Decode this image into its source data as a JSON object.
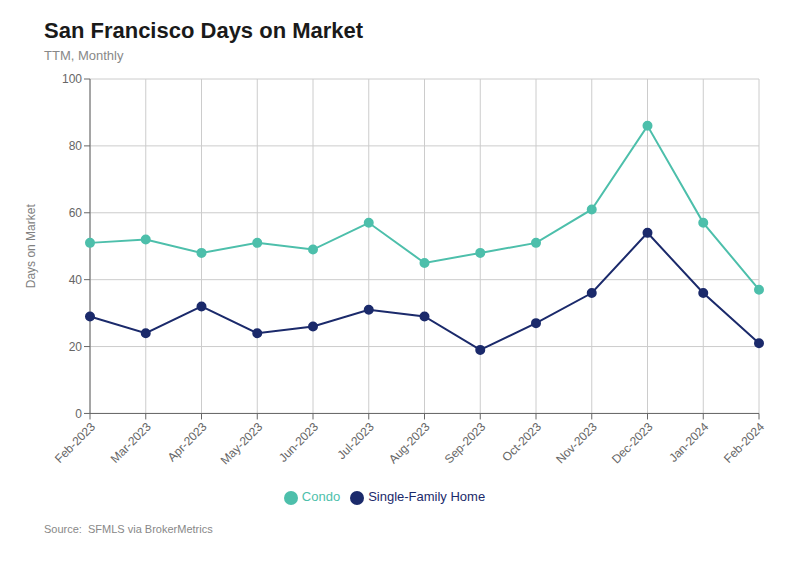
{
  "chart_data": {
    "type": "line",
    "title": "San Francisco Days on Market",
    "subtitle": "TTM, Monthly",
    "y_label": "Days on Market",
    "annotations": [
      "Source:  SFMLS via BrokerMetrics"
    ],
    "categories": [
      "Feb-2023",
      "Mar-2023",
      "Apr-2023",
      "May-2023",
      "Jun-2023",
      "Jul-2023",
      "Aug-2023",
      "Sep-2023",
      "Oct-2023",
      "Nov-2023",
      "Dec-2023",
      "Jan-2024",
      "Feb-2024"
    ],
    "series": [
      {
        "name": "Single-Family Home",
        "color": "#1b2a6b",
        "marker": "circle",
        "line_style": "solid",
        "values": [
          29,
          24,
          32,
          24,
          26,
          31,
          29,
          19,
          27,
          36,
          54,
          36,
          21
        ]
      },
      {
        "name": "Condo",
        "color": "#4dbfab",
        "marker": "circle",
        "line_style": "solid",
        "values": [
          51,
          52,
          48,
          51,
          49,
          57,
          45,
          48,
          51,
          61,
          86,
          57,
          37
        ]
      }
    ],
    "ylim": [
      0,
      100
    ],
    "yticks": [
      0,
      20,
      40,
      60,
      80,
      100
    ],
    "grid": true,
    "legend": "bottom"
  }
}
